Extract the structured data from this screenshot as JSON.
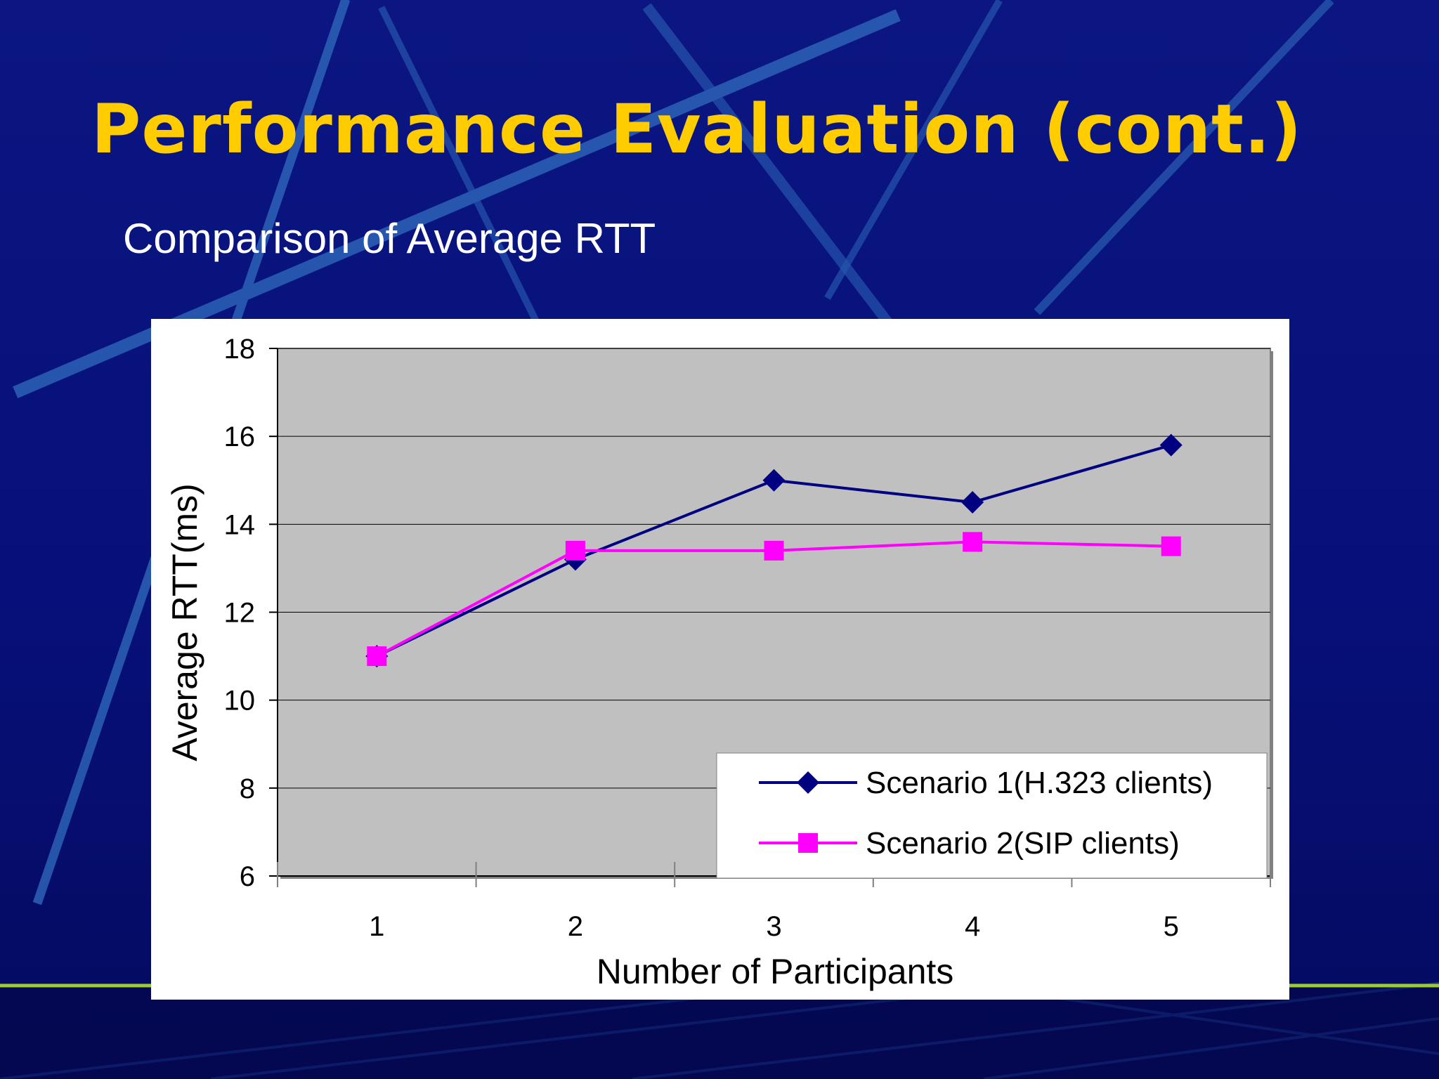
{
  "slide": {
    "title": "Performance Evaluation (cont.)",
    "subtitle": "Comparison of Average RTT"
  },
  "colors": {
    "background": "#07107a",
    "title": "#ffcc00",
    "subtitle": "#ffffff",
    "plot_area": "#c0c0c0",
    "series_1": "#000080",
    "series_2": "#ff00ff"
  },
  "chart_data": {
    "type": "line",
    "title": "",
    "xlabel": "Number of Participants",
    "ylabel": "Average RTT(ms)",
    "categories": [
      "1",
      "2",
      "3",
      "4",
      "5"
    ],
    "ylim": [
      6,
      18
    ],
    "yticks": [
      "6",
      "8",
      "10",
      "12",
      "14",
      "16",
      "18"
    ],
    "grid": true,
    "legend_position": "bottom-right",
    "series": [
      {
        "name": "Scenario 1(H.323 clients)",
        "marker": "diamond",
        "values": [
          11.0,
          13.2,
          15.0,
          14.5,
          15.8
        ]
      },
      {
        "name": "Scenario 2(SIP clients)",
        "marker": "square",
        "values": [
          11.0,
          13.4,
          13.4,
          13.6,
          13.5
        ]
      }
    ]
  }
}
